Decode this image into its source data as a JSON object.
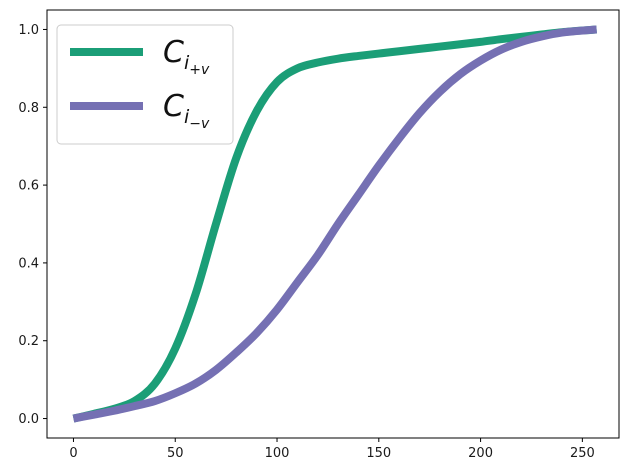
{
  "chart_data": {
    "type": "line",
    "title": "",
    "xlabel": "",
    "ylabel": "",
    "xlim": [
      -13,
      268
    ],
    "ylim": [
      -0.05,
      1.05
    ],
    "xticks": [
      0,
      50,
      100,
      150,
      200,
      250
    ],
    "yticks": [
      0.0,
      0.2,
      0.4,
      0.6,
      0.8,
      1.0
    ],
    "xtick_labels": [
      "0",
      "50",
      "100",
      "150",
      "200",
      "250"
    ],
    "ytick_labels": [
      "0.0",
      "0.2",
      "0.4",
      "0.6",
      "0.8",
      "1.0"
    ],
    "grid": false,
    "legend_position": "top-left",
    "series": [
      {
        "name": "C",
        "subscript": "i",
        "sub_subscript": "+v",
        "color": "#1b9e77",
        "x": [
          0,
          10,
          20,
          30,
          40,
          50,
          60,
          70,
          80,
          90,
          100,
          110,
          120,
          130,
          140,
          150,
          160,
          170,
          180,
          190,
          200,
          210,
          220,
          230,
          240,
          257
        ],
        "y": [
          0.0,
          0.012,
          0.025,
          0.045,
          0.09,
          0.18,
          0.32,
          0.5,
          0.67,
          0.79,
          0.865,
          0.9,
          0.915,
          0.925,
          0.932,
          0.938,
          0.944,
          0.95,
          0.956,
          0.962,
          0.968,
          0.975,
          0.981,
          0.987,
          0.993,
          1.0
        ]
      },
      {
        "name": "C",
        "subscript": "i",
        "sub_subscript": "−v",
        "color": "#7570b3",
        "x": [
          0,
          10,
          20,
          30,
          40,
          50,
          60,
          70,
          80,
          90,
          100,
          110,
          120,
          130,
          140,
          150,
          160,
          170,
          180,
          190,
          200,
          210,
          220,
          230,
          240,
          257
        ],
        "y": [
          0.0,
          0.01,
          0.02,
          0.032,
          0.045,
          0.065,
          0.09,
          0.125,
          0.17,
          0.22,
          0.28,
          0.35,
          0.42,
          0.5,
          0.575,
          0.65,
          0.72,
          0.785,
          0.84,
          0.885,
          0.92,
          0.948,
          0.968,
          0.982,
          0.992,
          1.0
        ]
      }
    ]
  }
}
